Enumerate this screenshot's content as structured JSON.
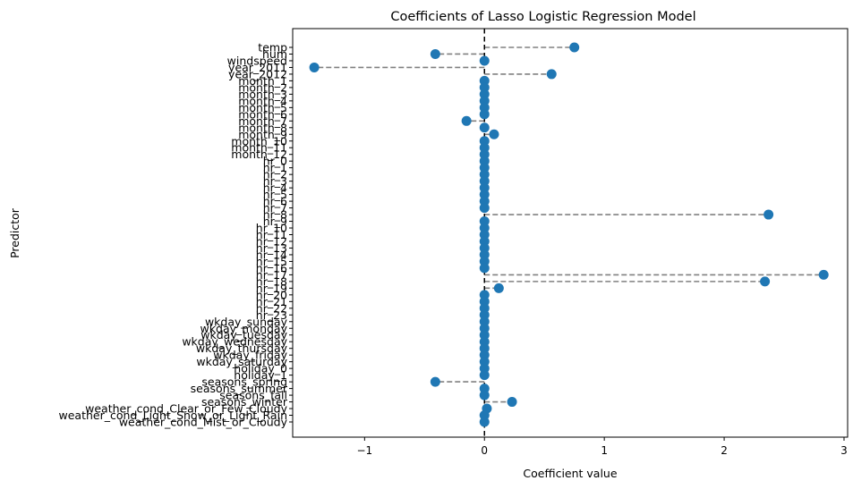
{
  "chart_data": {
    "type": "scatter",
    "title": "Coefficients of Lasso Logistic Regression Model",
    "xlabel": "Coefficient value",
    "ylabel": "Predictor",
    "xlim": [
      -1.6,
      3.03
    ],
    "xticks": [
      -1,
      0,
      1,
      2,
      3
    ],
    "xtick_labels": [
      "−1",
      "0",
      "1",
      "2",
      "3"
    ],
    "grid": false,
    "reference_line_x": 0,
    "point_color": "#1f77b4",
    "stem_color": "#808080",
    "points": [
      {
        "predictor": "temp",
        "value": 0.75
      },
      {
        "predictor": "hum",
        "value": -0.41
      },
      {
        "predictor": "windspeed",
        "value": 0.0
      },
      {
        "predictor": "year_2011",
        "value": -1.42
      },
      {
        "predictor": "year_2012",
        "value": 0.56
      },
      {
        "predictor": "month_1",
        "value": 0.0
      },
      {
        "predictor": "month_2",
        "value": 0.0
      },
      {
        "predictor": "month_3",
        "value": 0.0
      },
      {
        "predictor": "month_4",
        "value": 0.0
      },
      {
        "predictor": "month_5",
        "value": 0.0
      },
      {
        "predictor": "month_6",
        "value": 0.0
      },
      {
        "predictor": "month_7",
        "value": -0.15
      },
      {
        "predictor": "month_8",
        "value": 0.0
      },
      {
        "predictor": "month_9",
        "value": 0.08
      },
      {
        "predictor": "month_10",
        "value": 0.0
      },
      {
        "predictor": "month_11",
        "value": 0.0
      },
      {
        "predictor": "month_12",
        "value": 0.0
      },
      {
        "predictor": "hr_0",
        "value": 0.0
      },
      {
        "predictor": "hr_1",
        "value": 0.0
      },
      {
        "predictor": "hr_2",
        "value": 0.0
      },
      {
        "predictor": "hr_3",
        "value": 0.0
      },
      {
        "predictor": "hr_4",
        "value": 0.0
      },
      {
        "predictor": "hr_5",
        "value": 0.0
      },
      {
        "predictor": "hr_6",
        "value": 0.0
      },
      {
        "predictor": "hr_7",
        "value": 0.0
      },
      {
        "predictor": "hr_8",
        "value": 2.37
      },
      {
        "predictor": "hr_9",
        "value": 0.0
      },
      {
        "predictor": "hr_10",
        "value": 0.0
      },
      {
        "predictor": "hr_11",
        "value": 0.0
      },
      {
        "predictor": "hr_12",
        "value": 0.0
      },
      {
        "predictor": "hr_13",
        "value": 0.0
      },
      {
        "predictor": "hr_14",
        "value": 0.0
      },
      {
        "predictor": "hr_15",
        "value": 0.0
      },
      {
        "predictor": "hr_16",
        "value": 0.0
      },
      {
        "predictor": "hr_17",
        "value": 2.83
      },
      {
        "predictor": "hr_18",
        "value": 2.34
      },
      {
        "predictor": "hr_19",
        "value": 0.12
      },
      {
        "predictor": "hr_20",
        "value": 0.0
      },
      {
        "predictor": "hr_21",
        "value": 0.0
      },
      {
        "predictor": "hr_22",
        "value": 0.0
      },
      {
        "predictor": "hr_23",
        "value": 0.0
      },
      {
        "predictor": "wkday_sunday",
        "value": 0.0
      },
      {
        "predictor": "wkday_monday",
        "value": 0.0
      },
      {
        "predictor": "wkday_tuesday",
        "value": 0.0
      },
      {
        "predictor": "wkday_wednesday",
        "value": 0.0
      },
      {
        "predictor": "wkday_thursday",
        "value": 0.0
      },
      {
        "predictor": "wkday_friday",
        "value": 0.0
      },
      {
        "predictor": "wkday_saturday",
        "value": 0.0
      },
      {
        "predictor": "holiday_0",
        "value": 0.0
      },
      {
        "predictor": "holiday_1",
        "value": 0.0
      },
      {
        "predictor": "seasons_spring",
        "value": -0.41
      },
      {
        "predictor": "seasons_summer",
        "value": 0.0
      },
      {
        "predictor": "seasons_fall",
        "value": 0.0
      },
      {
        "predictor": "seasons_winter",
        "value": 0.23
      },
      {
        "predictor": "weather_cond_Clear_or_Few_Cloudy",
        "value": 0.02
      },
      {
        "predictor": "weather_cond_Light_Snow_or_Light_Rain",
        "value": 0.0
      },
      {
        "predictor": "weather_cond_Mist_or_Cloudy",
        "value": 0.0
      }
    ]
  }
}
